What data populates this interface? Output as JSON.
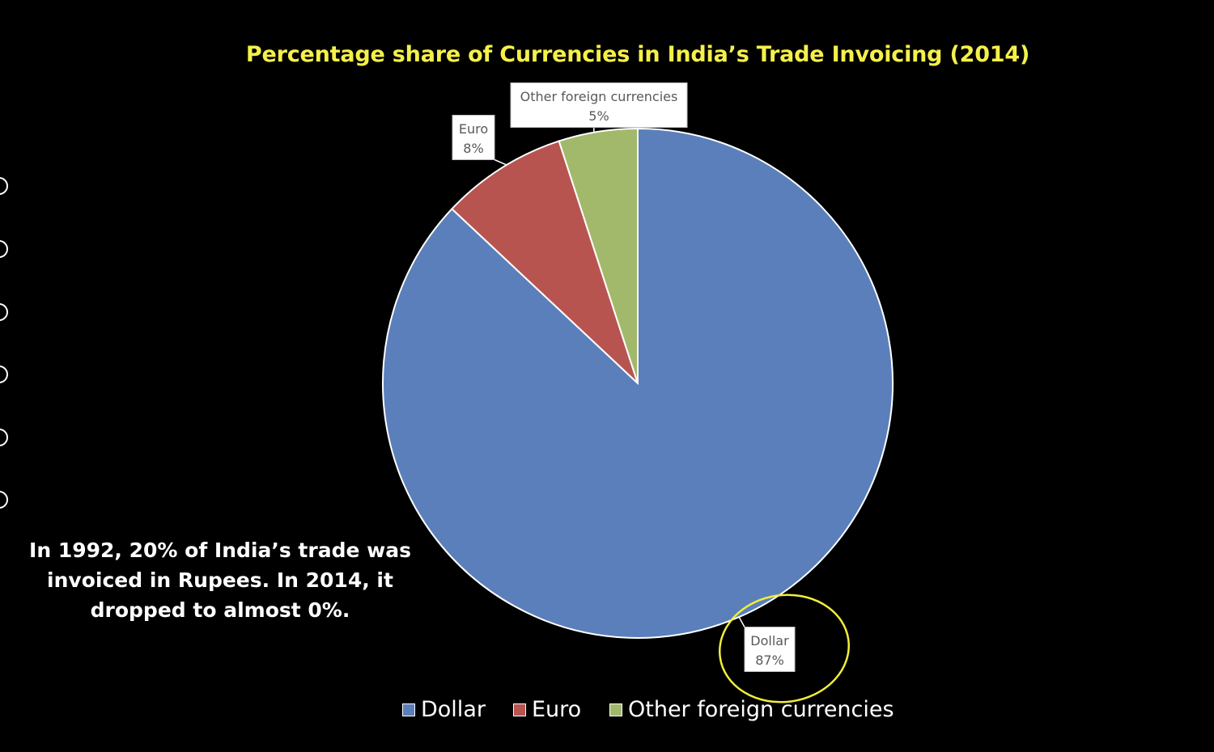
{
  "side_note": "In 1992, 20% of India’s trade was invoiced in Rupees. In 2014, it dropped to almost 0%.",
  "nav_icons": [
    "arrow-icon",
    "pointer-icon",
    "pen-icon",
    "zoom-icon",
    "more-icon",
    "close-icon"
  ],
  "chart_data": {
    "type": "pie",
    "title": "Percentage share of Currencies in India’s Trade Invoicing (2014)",
    "slices": [
      {
        "name": "Dollar",
        "value": 87,
        "label": "87%",
        "color": "#5b7fbb"
      },
      {
        "name": "Euro",
        "value": 8,
        "label": "8%",
        "color": "#b85450"
      },
      {
        "name": "Other foreign currencies",
        "value": 5,
        "label": "5%",
        "color": "#a2b96b"
      }
    ],
    "legend": {
      "position": "bottom",
      "items": [
        "Dollar",
        "Euro",
        "Other foreign currencies"
      ]
    },
    "annotation": {
      "highlighted_slice": "Dollar",
      "color": "#f0ee3a"
    }
  }
}
